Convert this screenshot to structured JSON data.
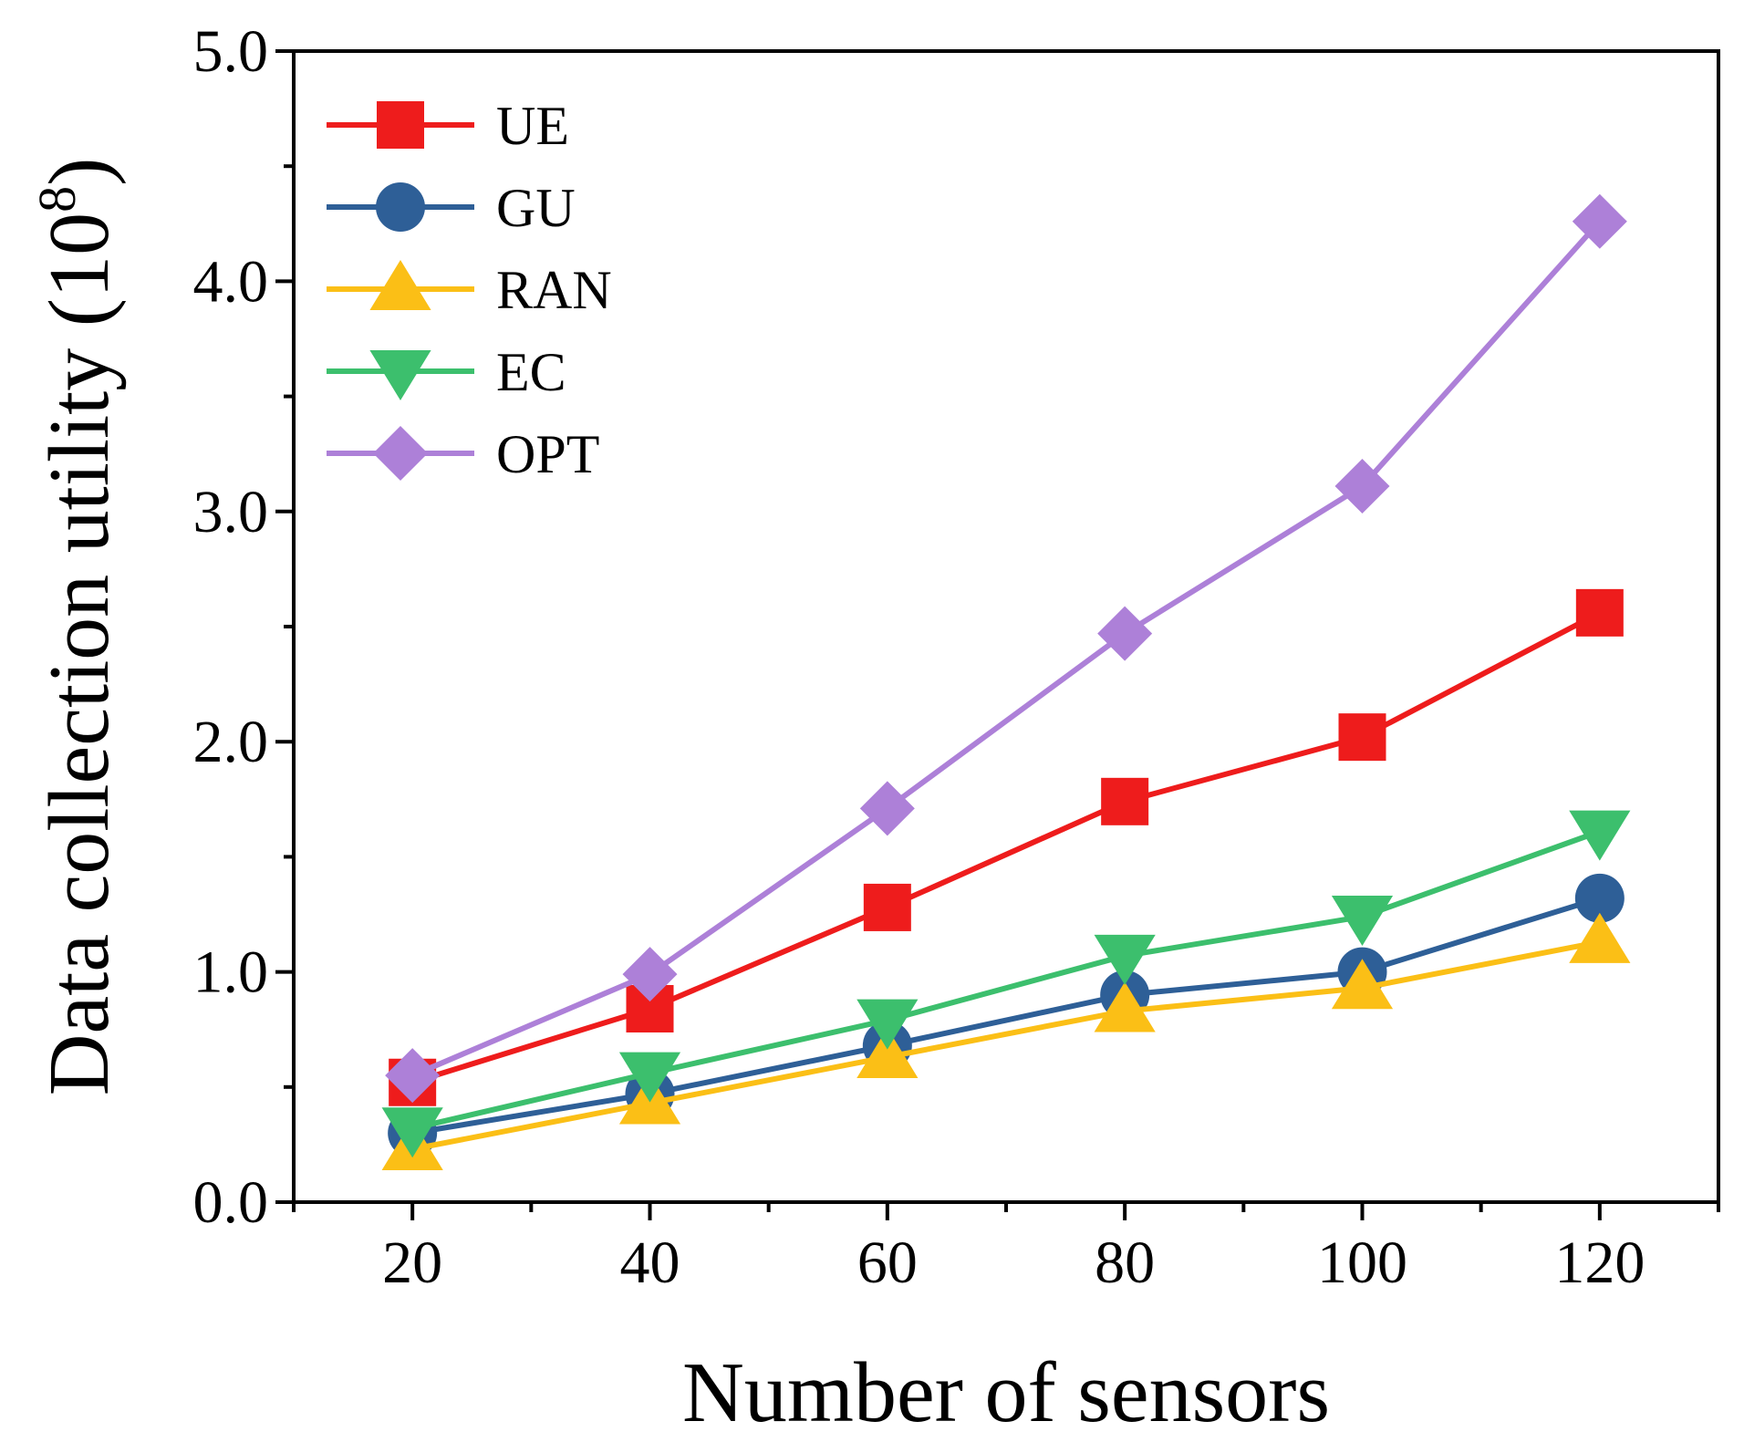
{
  "chart_data": {
    "type": "line",
    "title": "",
    "xlabel": "Number of sensors",
    "ylabel": "Data collection utility (10",
    "ylabel_superscript": "8",
    "ylabel_close": ")",
    "x": [
      20,
      40,
      60,
      80,
      100,
      120
    ],
    "xlim": [
      10,
      130
    ],
    "ylim": [
      0,
      5
    ],
    "x_ticks": [
      20,
      40,
      60,
      80,
      100,
      120
    ],
    "x_tick_labels": [
      "20",
      "40",
      "60",
      "80",
      "100",
      "120"
    ],
    "y_ticks": [
      0,
      1,
      2,
      3,
      4,
      5
    ],
    "y_tick_labels": [
      "0.0",
      "1.0",
      "2.0",
      "3.0",
      "4.0",
      "5.0"
    ],
    "grid": false,
    "legend_position": "top-left",
    "series": [
      {
        "name": "UE",
        "color": "#ee1c1c",
        "marker": "square",
        "values": [
          0.52,
          0.84,
          1.28,
          1.74,
          2.02,
          2.56
        ]
      },
      {
        "name": "GU",
        "color": "#2e5f97",
        "marker": "circle",
        "values": [
          0.3,
          0.47,
          0.68,
          0.9,
          1.0,
          1.32
        ]
      },
      {
        "name": "RAN",
        "color": "#fbbf16",
        "marker": "triangle-up",
        "values": [
          0.23,
          0.43,
          0.63,
          0.83,
          0.93,
          1.13
        ]
      },
      {
        "name": "EC",
        "color": "#3cbf6d",
        "marker": "triangle-down",
        "values": [
          0.32,
          0.56,
          0.79,
          1.07,
          1.24,
          1.61
        ]
      },
      {
        "name": "OPT",
        "color": "#ad80d8",
        "marker": "diamond",
        "values": [
          0.55,
          0.99,
          1.71,
          2.47,
          3.11,
          4.26
        ]
      }
    ]
  }
}
